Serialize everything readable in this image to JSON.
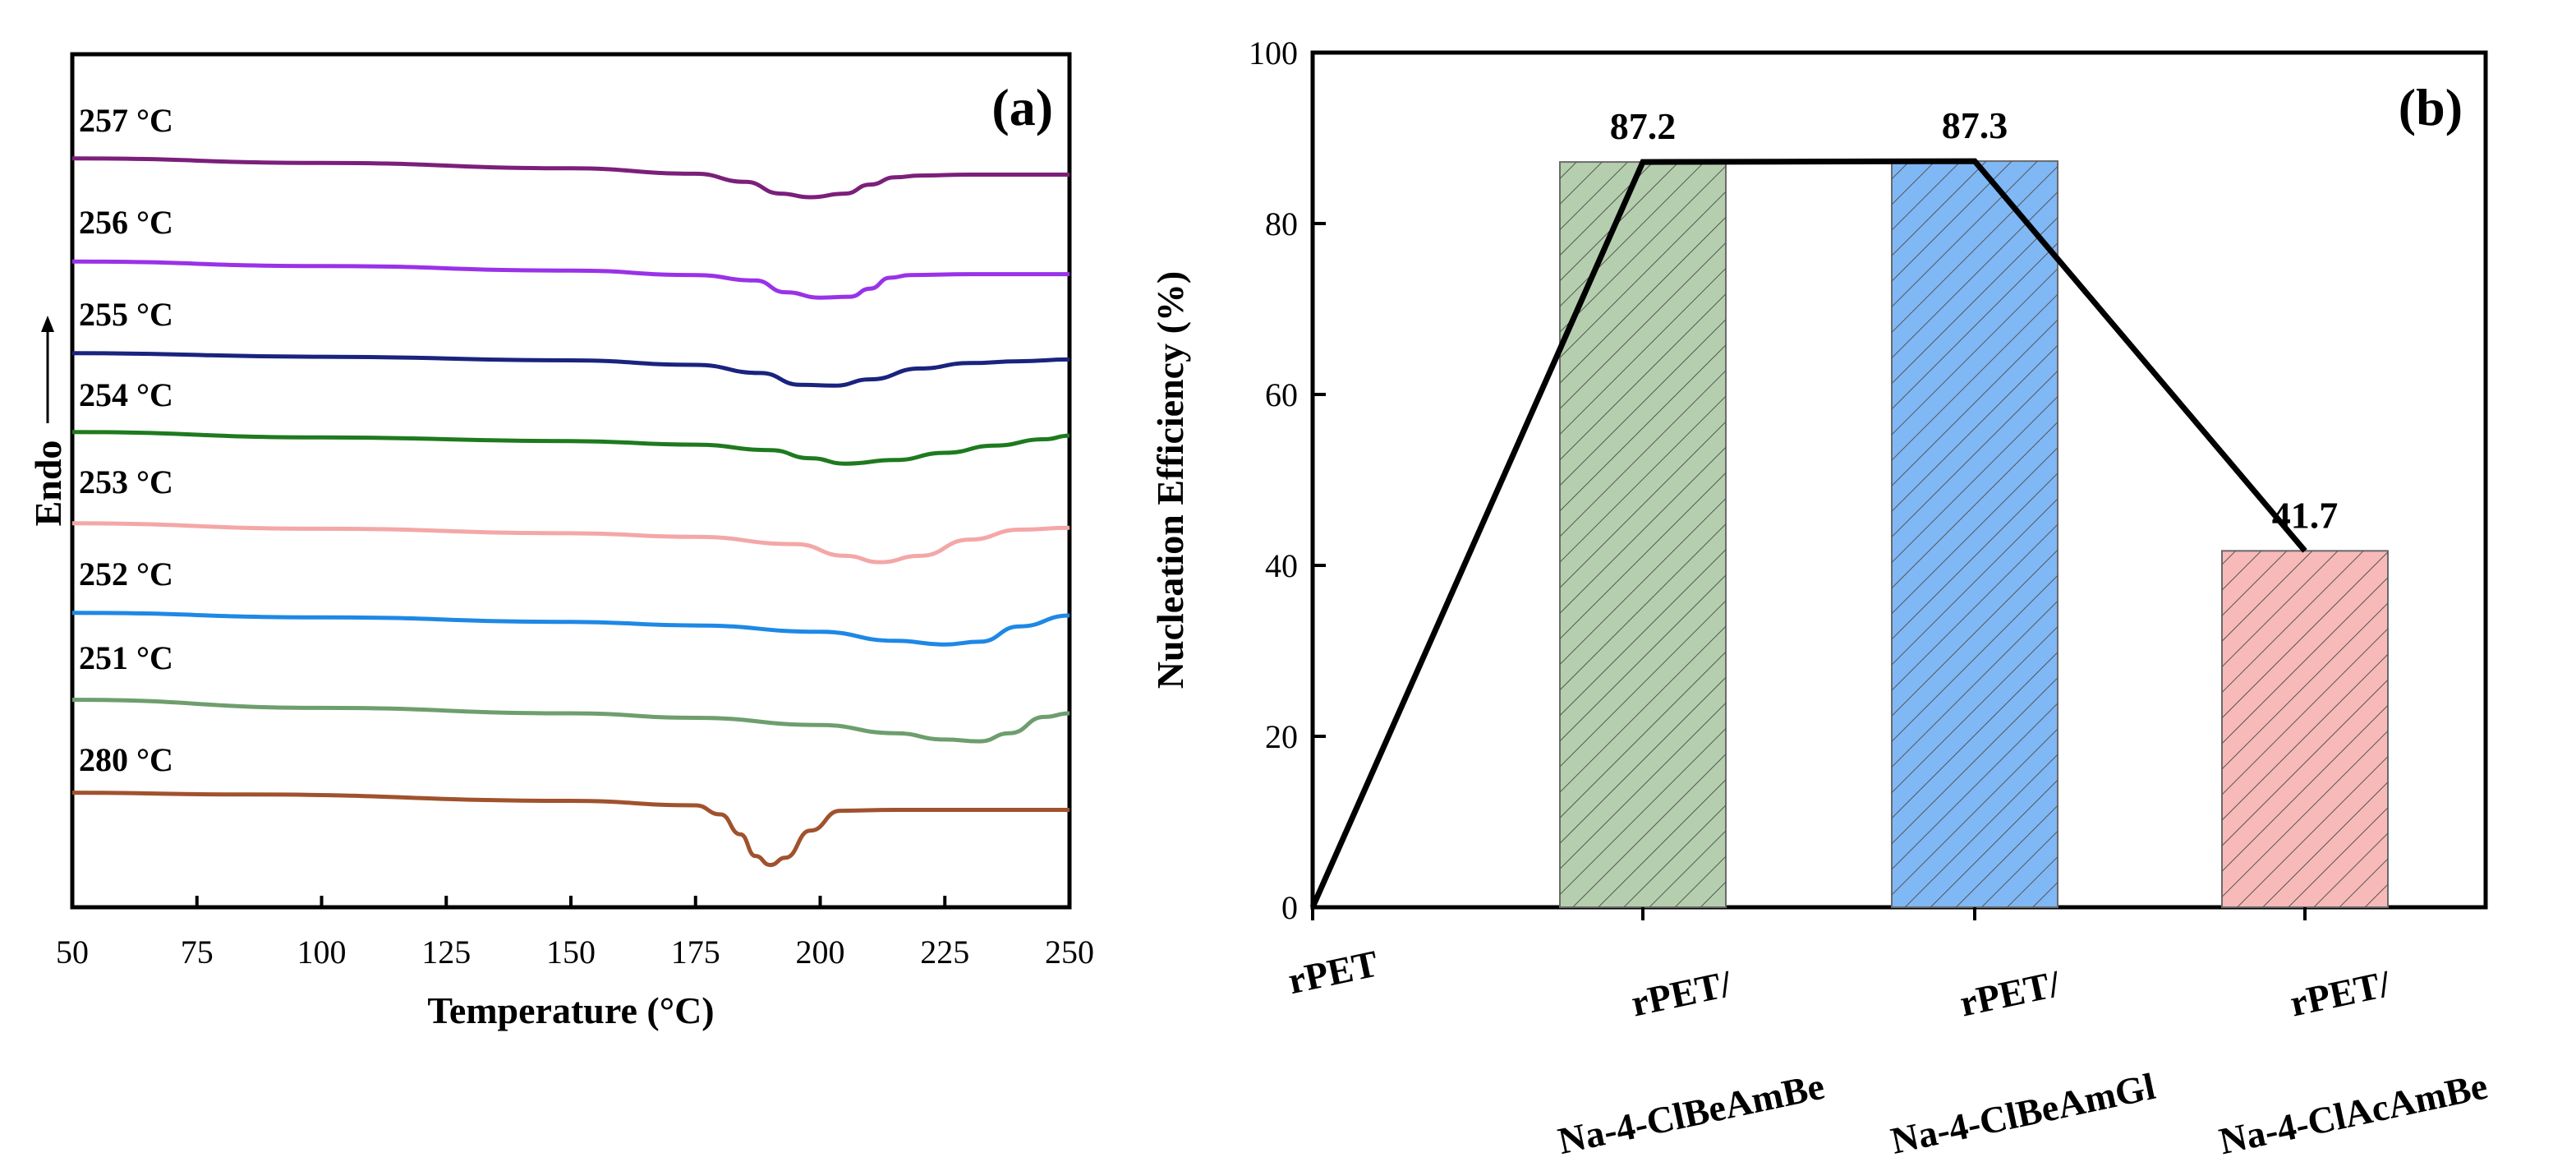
{
  "chart_data": [
    {
      "type": "line",
      "panel_label": "(a)",
      "xlabel": "Temperature (°C)",
      "ylabel": "Endo",
      "xlim": [
        50,
        250
      ],
      "xticks": [
        "50",
        "75",
        "100",
        "125",
        "150",
        "175",
        "200",
        "225",
        "250"
      ],
      "series": [
        {
          "name": "257 °C",
          "color": "#7b1f7b",
          "x": [
            50,
            100,
            150,
            175,
            185,
            192,
            198,
            205,
            210,
            215,
            220,
            230,
            250
          ],
          "y": [
            2.3,
            1.8,
            1.2,
            0.6,
            -0.3,
            -1.6,
            -2.0,
            -1.6,
            -0.6,
            0.2,
            0.4,
            0.5,
            0.5
          ]
        },
        {
          "name": "256 °C",
          "color": "#9932e8",
          "x": [
            50,
            100,
            150,
            175,
            187,
            193,
            200,
            206,
            210,
            214,
            218,
            230,
            250
          ],
          "y": [
            1.8,
            1.3,
            0.8,
            0.3,
            -0.3,
            -1.6,
            -2.2,
            -2.1,
            -1.2,
            0.0,
            0.3,
            0.4,
            0.4
          ]
        },
        {
          "name": "255 °C",
          "color": "#1a237e",
          "x": [
            50,
            100,
            150,
            175,
            188,
            196,
            203,
            210,
            220,
            230,
            240,
            250
          ],
          "y": [
            1.3,
            0.9,
            0.5,
            0.0,
            -0.9,
            -2.2,
            -2.3,
            -1.6,
            -0.4,
            0.2,
            0.4,
            0.6
          ]
        },
        {
          "name": "254 °C",
          "color": "#1e7a1e",
          "x": [
            50,
            100,
            150,
            175,
            190,
            198,
            205,
            215,
            225,
            235,
            245,
            250
          ],
          "y": [
            1.3,
            0.7,
            0.3,
            -0.1,
            -0.7,
            -1.6,
            -2.2,
            -1.8,
            -1.0,
            -0.2,
            0.5,
            0.9
          ]
        },
        {
          "name": "253 °C",
          "color": "#f4a7a7",
          "x": [
            50,
            100,
            150,
            175,
            195,
            205,
            212,
            220,
            230,
            240,
            250
          ],
          "y": [
            1.2,
            0.6,
            0.1,
            -0.3,
            -1.1,
            -2.4,
            -3.1,
            -2.4,
            -0.6,
            0.5,
            0.7
          ]
        },
        {
          "name": "252 °C",
          "color": "#1e88e5",
          "x": [
            50,
            100,
            150,
            175,
            200,
            215,
            225,
            232,
            240,
            250
          ],
          "y": [
            1.3,
            0.8,
            0.3,
            -0.1,
            -0.8,
            -1.8,
            -2.2,
            -1.9,
            -0.2,
            1.0
          ]
        },
        {
          "name": "251 °C",
          "color": "#6e9e6e",
          "x": [
            50,
            100,
            150,
            175,
            200,
            215,
            225,
            232,
            238,
            245,
            250
          ],
          "y": [
            1.5,
            0.6,
            0.0,
            -0.5,
            -1.3,
            -2.2,
            -2.9,
            -3.1,
            -2.2,
            -0.4,
            0.0
          ]
        },
        {
          "name": "280 °C",
          "color": "#a0522d",
          "x": [
            50,
            85,
            150,
            175,
            180,
            184,
            187,
            190,
            193,
            198,
            204,
            215,
            250
          ],
          "y": [
            1.4,
            1.2,
            0.5,
            0.0,
            -1.0,
            -3.2,
            -5.6,
            -6.6,
            -5.8,
            -2.8,
            -0.6,
            -0.5,
            -0.5
          ]
        }
      ]
    },
    {
      "type": "bar",
      "panel_label": "(b)",
      "title": "",
      "xlabel": "",
      "ylabel": "Nucleation Efficiency (%)",
      "ylim": [
        0,
        100
      ],
      "yticks": [
        "0",
        "20",
        "40",
        "60",
        "80",
        "100"
      ],
      "categories": [
        {
          "line1": "rPET",
          "line2": ""
        },
        {
          "line1": "rPET/",
          "line2": "Na-4-ClBeAmBe"
        },
        {
          "line1": "rPET/",
          "line2": "Na-4-ClBeAmGl"
        },
        {
          "line1": "rPET/",
          "line2": "Na-4-ClAcAmBe"
        }
      ],
      "values": [
        0,
        87.2,
        87.3,
        41.7
      ],
      "value_labels": [
        "",
        "87.2",
        "87.3",
        "41.7"
      ],
      "bar_colors": [
        "none",
        "#b5cfae",
        "#7fb8f5",
        "#f8b9b9"
      ],
      "line_values": [
        0,
        87.2,
        87.3,
        41.7
      ]
    }
  ]
}
